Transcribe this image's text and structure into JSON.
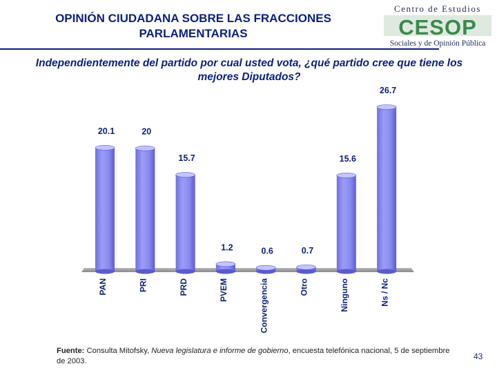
{
  "slide": {
    "title": "OPINIÓN CIUDADANA SOBRE LAS FRACCIONES PARLAMENTARIAS",
    "question": "Independientemente del partido por cual usted vota, ¿qué partido cree que tiene los mejores Diputados?",
    "page_number": "43"
  },
  "logo": {
    "line1": "Centro de Estudios",
    "mark": "CESOP",
    "line2": "Sociales y de Opinión Pública",
    "colors": {
      "text": "#1f2a55",
      "mark": "#3a8a4a",
      "bar": "#2e7d3a"
    }
  },
  "footer": {
    "label": "Fuente:",
    "text_before": " Consulta Mitofsky, ",
    "italic": "Nueva legislatura e informe de gobierno",
    "text_after": ", encuesta telefónica nacional, 5 de septiembre de 2003."
  },
  "chart_data": {
    "type": "bar",
    "categories": [
      "PAN",
      "PRI",
      "PRD",
      "PVEM",
      "Convergencia",
      "Otro",
      "Ninguno",
      "Ns / Nc"
    ],
    "values": [
      20.1,
      20,
      15.7,
      1.2,
      0.6,
      0.7,
      15.6,
      26.7
    ],
    "value_labels": [
      "20.1",
      "20",
      "15.7",
      "1.2",
      "0.6",
      "0.7",
      "15.6",
      "26.7"
    ],
    "ylim": [
      0,
      26.7
    ],
    "grid": false,
    "legend": "none",
    "colors": {
      "bar": "#8e8ef0",
      "bar_dark": "#5a5ad0",
      "bar_light": "#c4c4ff",
      "floor": "#9a9a9a",
      "label": "#0a1f7a"
    }
  }
}
